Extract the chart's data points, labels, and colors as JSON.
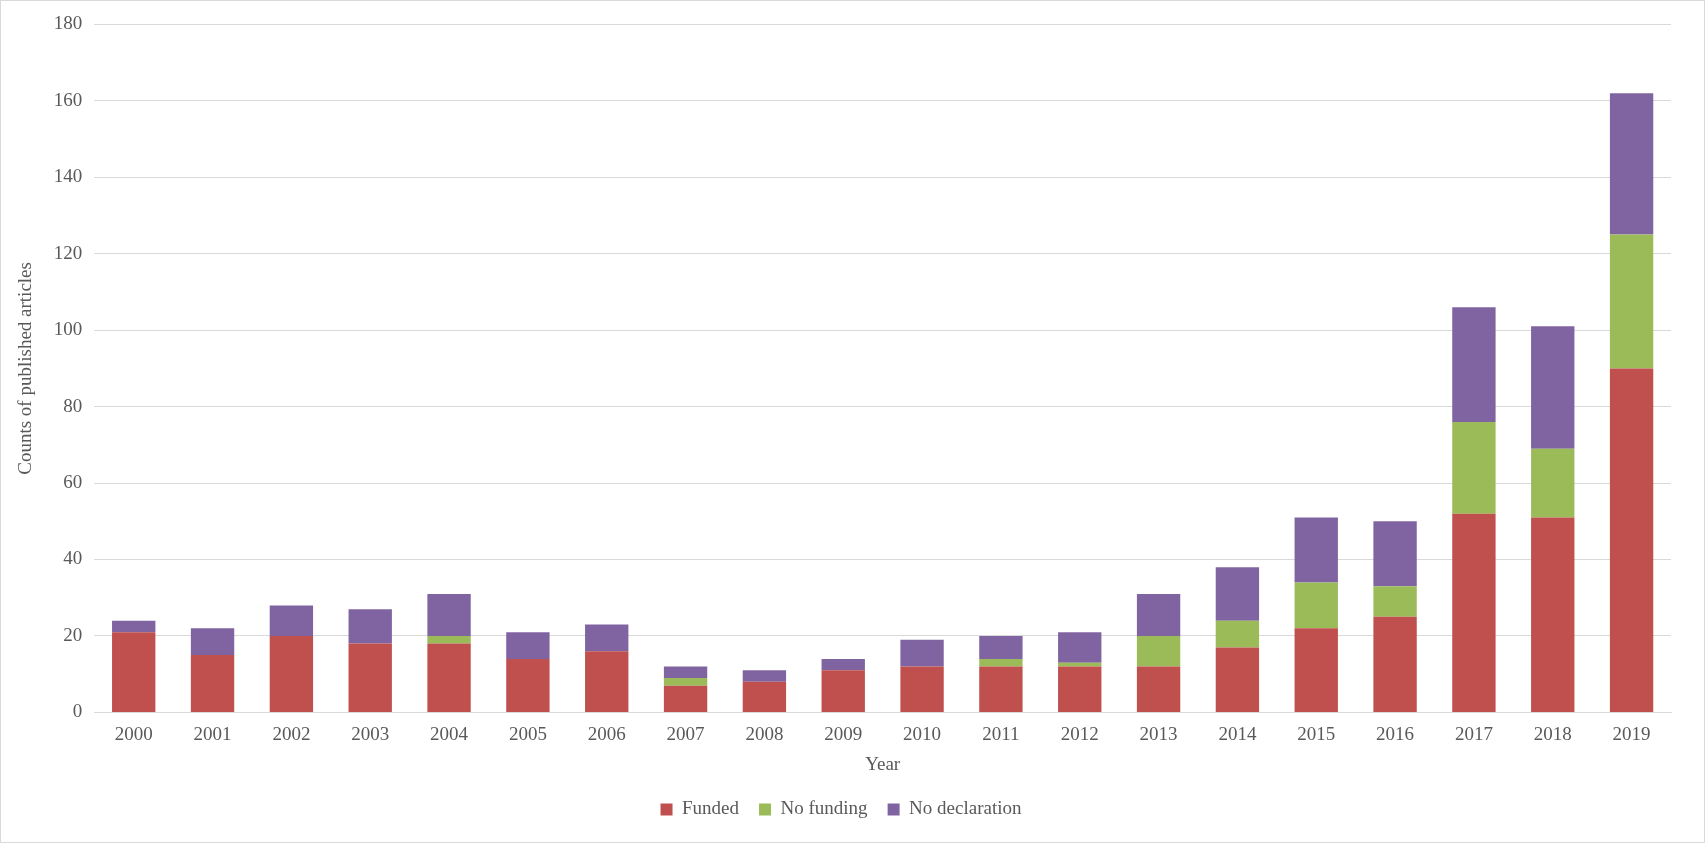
{
  "chart_data": {
    "type": "bar",
    "stacked": true,
    "xlabel": "Year",
    "ylabel": "Counts of published articles",
    "categories": [
      "2000",
      "2001",
      "2002",
      "2003",
      "2004",
      "2005",
      "2006",
      "2007",
      "2008",
      "2009",
      "2010",
      "2011",
      "2012",
      "2013",
      "2014",
      "2015",
      "2016",
      "2017",
      "2018",
      "2019"
    ],
    "series": [
      {
        "name": "Funded",
        "color": "#c0504d",
        "values": [
          21,
          15,
          20,
          18,
          18,
          14,
          16,
          7,
          8,
          11,
          12,
          12,
          12,
          12,
          17,
          22,
          25,
          52,
          51,
          90
        ]
      },
      {
        "name": "No funding",
        "color": "#9bbb59",
        "values": [
          0,
          0,
          0,
          0,
          2,
          0,
          0,
          2,
          0,
          0,
          0,
          2,
          1,
          8,
          7,
          12,
          8,
          24,
          18,
          35
        ]
      },
      {
        "name": "No declaration",
        "color": "#8064a2",
        "values": [
          3,
          7,
          8,
          9,
          11,
          7,
          7,
          3,
          3,
          3,
          7,
          6,
          8,
          11,
          14,
          17,
          17,
          30,
          32,
          37
        ]
      }
    ],
    "ylim": [
      0,
      180
    ],
    "yticks": [
      0,
      20,
      40,
      60,
      80,
      100,
      120,
      140,
      160,
      180
    ],
    "grid": "y",
    "legend": "bottom"
  }
}
